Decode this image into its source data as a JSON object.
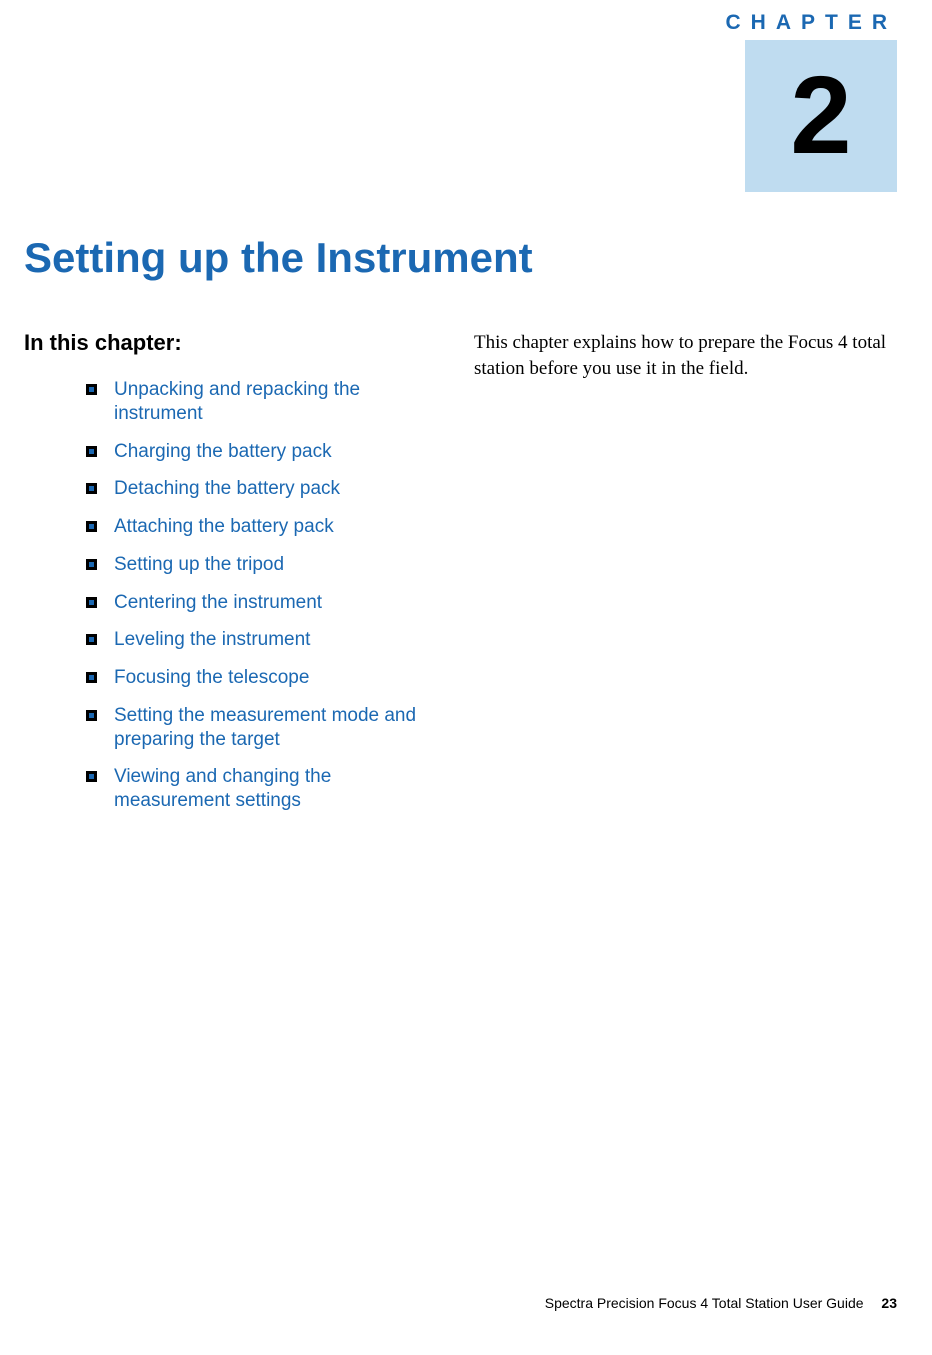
{
  "header": {
    "chapter_label": "CHAPTER",
    "chapter_number": "2",
    "chapter_box_bg": "#bfdcf0",
    "label_color": "#1b68b2"
  },
  "title": {
    "text": "Setting up the Instrument",
    "color": "#1b68b2"
  },
  "toc": {
    "heading": "In this chapter:",
    "link_color": "#1b68b2",
    "items": [
      "Unpacking and repacking the instrument",
      "Charging the battery pack",
      "Detaching the battery pack",
      "Attaching the battery pack",
      "Setting up the tripod",
      "Centering the instrument",
      "Leveling the instrument",
      "Focusing the telescope",
      "Setting the measurement mode and preparing the target",
      "Viewing and changing the measurement settings"
    ]
  },
  "body": {
    "paragraph": "This chapter explains how to prepare the Focus 4 total station before you use it in the field."
  },
  "footer": {
    "guide": "Spectra Precision Focus 4 Total Station User Guide",
    "page": "23"
  }
}
